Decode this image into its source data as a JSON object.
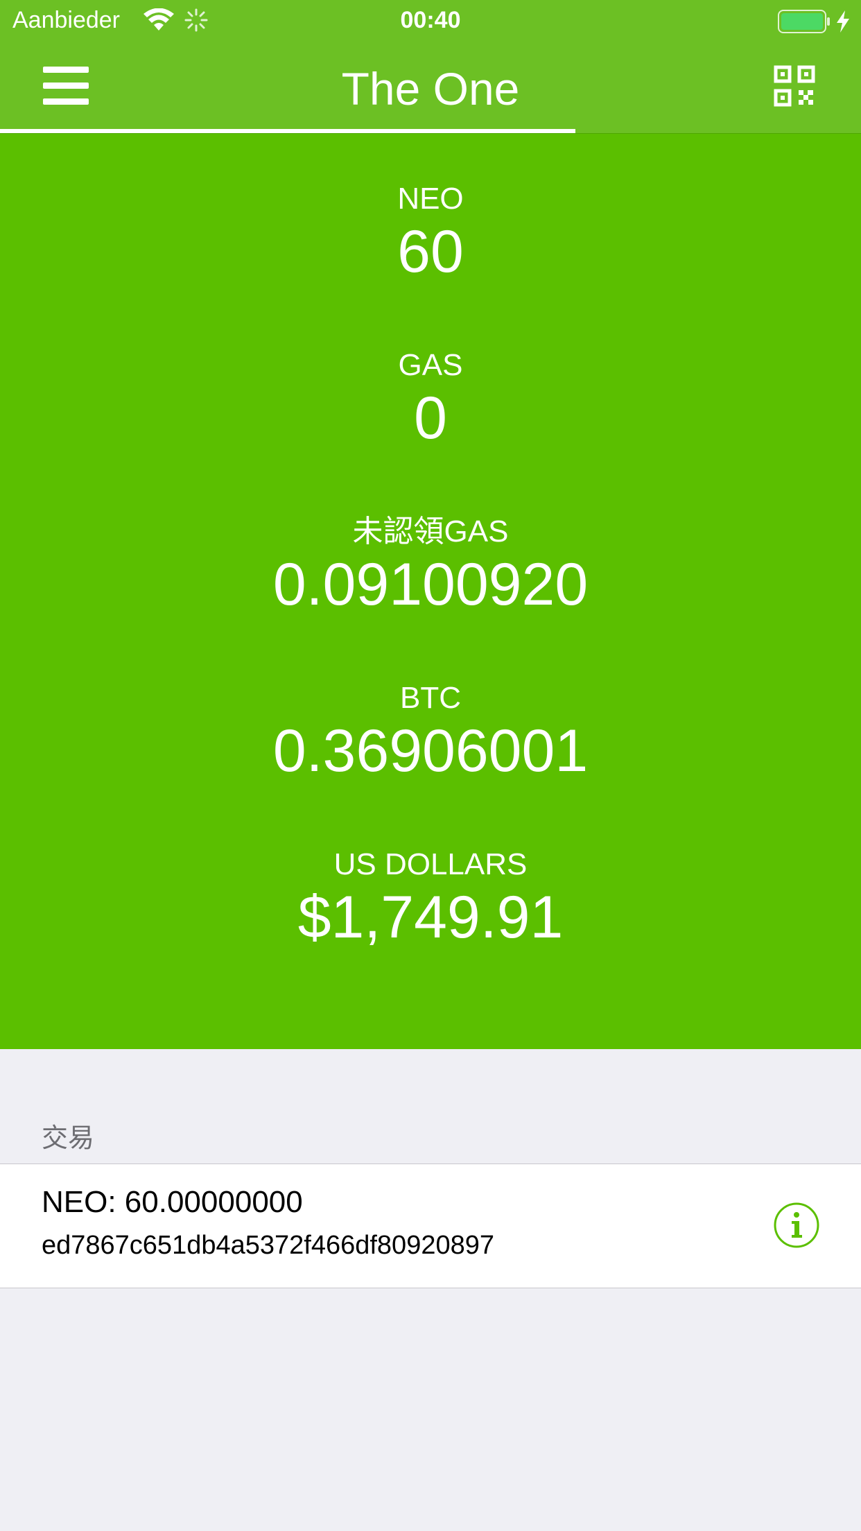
{
  "status_bar": {
    "carrier": "Aanbieder",
    "time": "00:40",
    "icons": [
      "wifi-icon",
      "activity-spinner-icon",
      "battery-icon",
      "charging-bolt-icon"
    ]
  },
  "nav": {
    "title": "The One",
    "left_icon": "hamburger-menu-icon",
    "right_icon": "qr-code-icon"
  },
  "balances": [
    {
      "label": "NEO",
      "value": "60"
    },
    {
      "label": "GAS",
      "value": "0"
    },
    {
      "label": "未認領GAS",
      "value": "0.09100920"
    },
    {
      "label": "BTC",
      "value": "0.36906001"
    },
    {
      "label": "US DOLLARS",
      "value": "$1,749.91"
    }
  ],
  "transactions": {
    "header": "交易",
    "items": [
      {
        "amount": "NEO: 60.00000000",
        "txid": "ed7867c651db4a5372f466df80920897",
        "icon": "info-icon"
      }
    ]
  },
  "colors": {
    "nav_green": "#6cc024",
    "panel_green": "#5bbf00",
    "background": "#efeff4",
    "accent": "#5bbf00"
  }
}
